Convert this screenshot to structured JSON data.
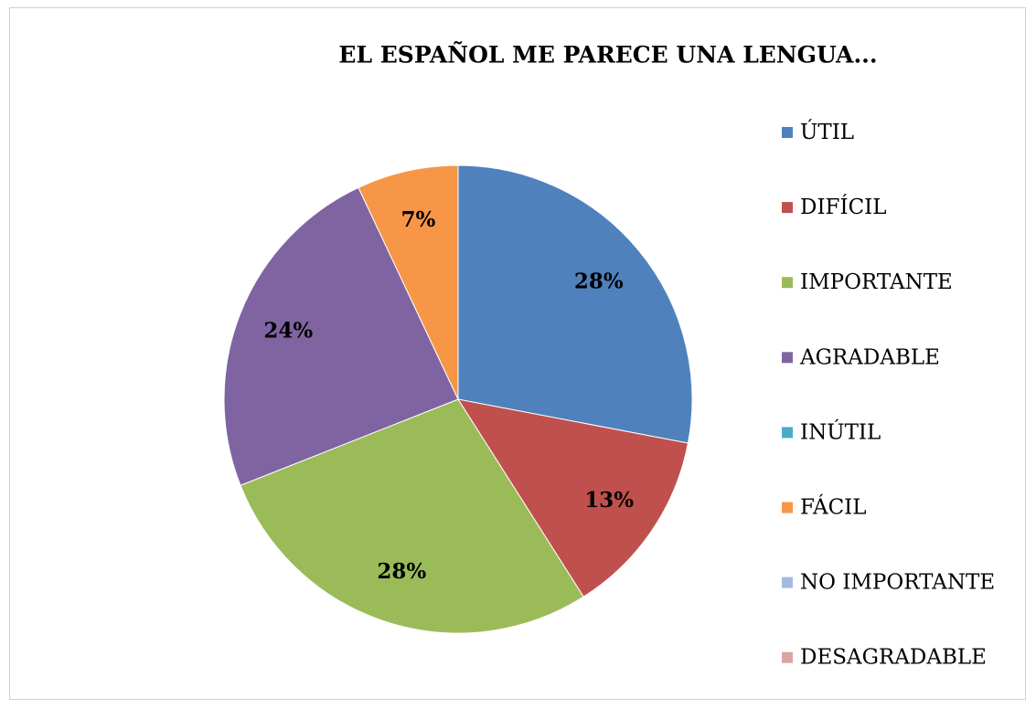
{
  "chart_data": {
    "type": "pie",
    "title": "EL ESPAÑOL ME PARECE UNA LENGUA...",
    "categories": [
      "ÚTIL",
      "DIFÍCIL",
      "IMPORTANTE",
      "AGRADABLE",
      "INÚTIL",
      "FÁCIL",
      "NO IMPORTANTE",
      "DESAGRADABLE"
    ],
    "values": [
      28,
      13,
      28,
      24,
      0,
      7,
      0,
      0
    ],
    "value_labels": [
      "28%",
      "13%",
      "28%",
      "24%",
      null,
      "7%",
      null,
      null
    ],
    "colors": [
      "#4f81bd",
      "#c0504d",
      "#9bbb59",
      "#8064a2",
      "#4bacc6",
      "#f79646",
      "#a5b9dc",
      "#dba3a2"
    ],
    "legend": "right"
  }
}
